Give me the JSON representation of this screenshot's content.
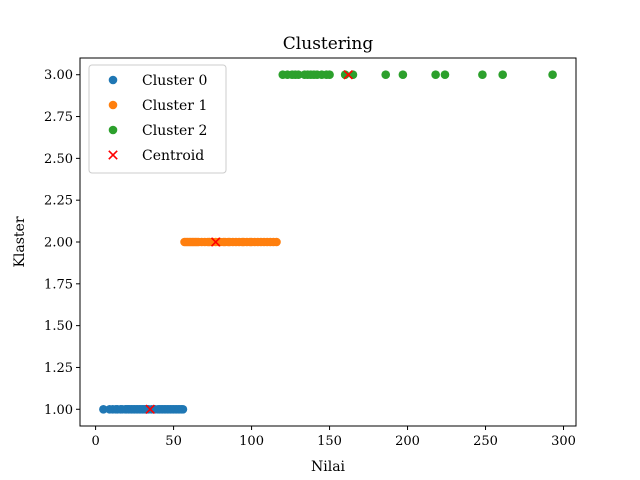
{
  "chart_data": {
    "type": "scatter",
    "title": "Clustering",
    "xlabel": "Nilai",
    "ylabel": "Klaster",
    "xlim": [
      -10,
      308
    ],
    "ylim": [
      0.9,
      3.1
    ],
    "xticks": [
      0,
      50,
      100,
      150,
      200,
      250,
      300
    ],
    "xtick_labels": [
      "0",
      "50",
      "100",
      "150",
      "200",
      "250",
      "300"
    ],
    "yticks": [
      1.0,
      1.25,
      1.5,
      1.75,
      2.0,
      2.25,
      2.5,
      2.75,
      3.0
    ],
    "ytick_labels": [
      "1.00",
      "1.25",
      "1.50",
      "1.75",
      "2.00",
      "2.25",
      "2.50",
      "2.75",
      "3.00"
    ],
    "grid": false,
    "legend_position": "top-left",
    "series": [
      {
        "name": "Cluster 0",
        "color": "#1f77b4",
        "marker": "circle",
        "x": [
          5,
          9,
          11,
          13,
          14,
          16,
          17,
          19,
          20,
          21,
          22,
          23,
          24,
          25,
          26,
          27,
          28,
          29,
          30,
          31,
          32,
          33,
          34,
          36,
          38,
          40,
          41,
          42,
          43,
          44,
          45,
          46,
          47,
          48,
          49,
          50,
          51,
          52,
          53,
          54,
          55,
          56
        ],
        "y": [
          1,
          1,
          1,
          1,
          1,
          1,
          1,
          1,
          1,
          1,
          1,
          1,
          1,
          1,
          1,
          1,
          1,
          1,
          1,
          1,
          1,
          1,
          1,
          1,
          1,
          1,
          1,
          1,
          1,
          1,
          1,
          1,
          1,
          1,
          1,
          1,
          1,
          1,
          1,
          1,
          1,
          1
        ]
      },
      {
        "name": "Cluster 1",
        "color": "#ff7f0e",
        "marker": "circle",
        "x": [
          57,
          58,
          59,
          60,
          61,
          62,
          63,
          64,
          65,
          66,
          68,
          70,
          72,
          73,
          75,
          77,
          79,
          80,
          82,
          83,
          85,
          86,
          88,
          90,
          92,
          94,
          95,
          97,
          99,
          100,
          102,
          104,
          106,
          108,
          110,
          112,
          114,
          116
        ],
        "y": [
          2,
          2,
          2,
          2,
          2,
          2,
          2,
          2,
          2,
          2,
          2,
          2,
          2,
          2,
          2,
          2,
          2,
          2,
          2,
          2,
          2,
          2,
          2,
          2,
          2,
          2,
          2,
          2,
          2,
          2,
          2,
          2,
          2,
          2,
          2,
          2,
          2,
          2
        ]
      },
      {
        "name": "Cluster 2",
        "color": "#2ca02c",
        "marker": "circle",
        "x": [
          120,
          123,
          126,
          128,
          130,
          134,
          136,
          138,
          140,
          142,
          145,
          148,
          150,
          160,
          165,
          186,
          197,
          218,
          224,
          248,
          261,
          293
        ],
        "y": [
          3,
          3,
          3,
          3,
          3,
          3,
          3,
          3,
          3,
          3,
          3,
          3,
          3,
          3,
          3,
          3,
          3,
          3,
          3,
          3,
          3,
          3
        ]
      },
      {
        "name": "Centroid",
        "color": "#ff0000",
        "marker": "x",
        "x": [
          35,
          77,
          162
        ],
        "y": [
          1,
          2,
          3
        ]
      }
    ]
  }
}
